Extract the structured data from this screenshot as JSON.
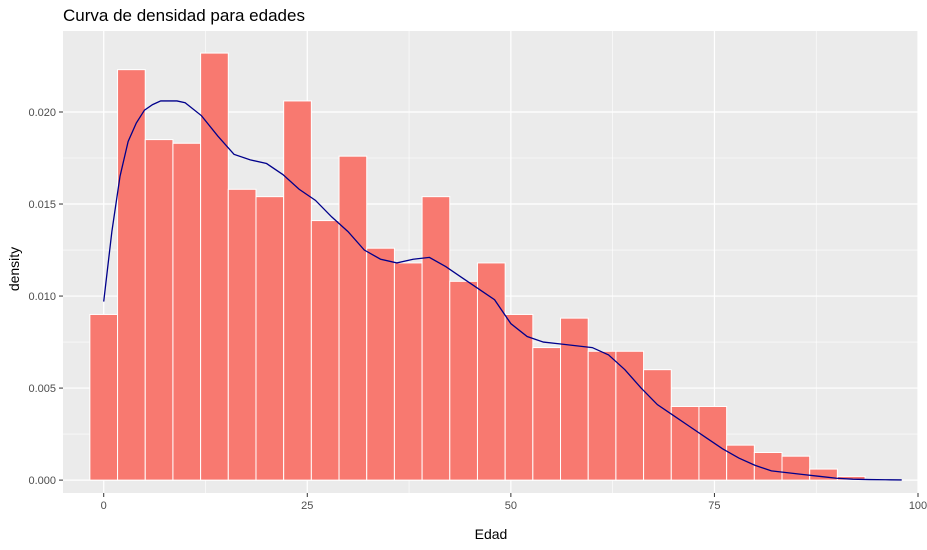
{
  "chart_data": {
    "type": "bar",
    "title": "Curva de densidad para edades",
    "xlabel": "Edad",
    "ylabel": "density",
    "xlim": [
      -5,
      100
    ],
    "ylim": [
      -0.0007,
      0.0244
    ],
    "x_ticks": [
      0,
      25,
      50,
      75,
      100
    ],
    "x_tick_labels": [
      "0",
      "25",
      "50",
      "75",
      "100"
    ],
    "y_ticks": [
      0,
      0.005,
      0.01,
      0.015,
      0.02
    ],
    "y_tick_labels": [
      "0.000",
      "0.005",
      "0.010",
      "0.015",
      "0.020"
    ],
    "grid": true,
    "legend": "none",
    "bin_width": 3.4,
    "histogram": {
      "name": "",
      "bin_centers": [
        0,
        3.4,
        6.8,
        10.2,
        13.6,
        17,
        20.4,
        23.8,
        27.2,
        30.6,
        34,
        37.4,
        40.8,
        44.2,
        47.6,
        51,
        54.4,
        57.8,
        61.2,
        64.6,
        68,
        71.4,
        74.8,
        78.2,
        81.6,
        85,
        88.4,
        91.8,
        95.2
      ],
      "values": [
        0.009,
        0.0223,
        0.0185,
        0.0183,
        0.0232,
        0.0158,
        0.0154,
        0.0206,
        0.0141,
        0.0176,
        0.0126,
        0.0118,
        0.0154,
        0.0108,
        0.0118,
        0.009,
        0.0072,
        0.0088,
        0.007,
        0.007,
        0.006,
        0.004,
        0.004,
        0.0019,
        0.0015,
        0.0013,
        0.0006,
        0.0002,
        0.0
      ]
    },
    "density_curve": {
      "name": "",
      "x": [
        0,
        1,
        2,
        3,
        4,
        5,
        6,
        7,
        8,
        9,
        10,
        12,
        14,
        16,
        18,
        20,
        22,
        24,
        26,
        28,
        30,
        32,
        34,
        36,
        38,
        40,
        42,
        44,
        46,
        48,
        50,
        52,
        54,
        56,
        58,
        60,
        62,
        64,
        66,
        68,
        70,
        72,
        74,
        76,
        78,
        80,
        82,
        84,
        86,
        88,
        90,
        92,
        94,
        96,
        98
      ],
      "y": [
        0.0097,
        0.0135,
        0.0165,
        0.0184,
        0.0194,
        0.0201,
        0.0204,
        0.0206,
        0.0206,
        0.0206,
        0.0205,
        0.0198,
        0.0187,
        0.0177,
        0.0174,
        0.0172,
        0.0166,
        0.0158,
        0.0152,
        0.0143,
        0.0135,
        0.0125,
        0.012,
        0.0118,
        0.012,
        0.0121,
        0.0116,
        0.011,
        0.0104,
        0.0098,
        0.0085,
        0.0078,
        0.0075,
        0.0074,
        0.0073,
        0.0072,
        0.0068,
        0.006,
        0.005,
        0.0041,
        0.0035,
        0.0029,
        0.0023,
        0.0017,
        0.0012,
        0.0008,
        0.0005,
        0.0004,
        0.0003,
        0.0002,
        0.0001,
        5e-05,
        3e-05,
        2e-05,
        1e-05
      ]
    },
    "colors": {
      "bar_fill": "#f8766d",
      "bar_stroke": "#ffffff",
      "curve": "#00008b",
      "panel": "#ebebeb",
      "grid": "#ffffff"
    }
  }
}
